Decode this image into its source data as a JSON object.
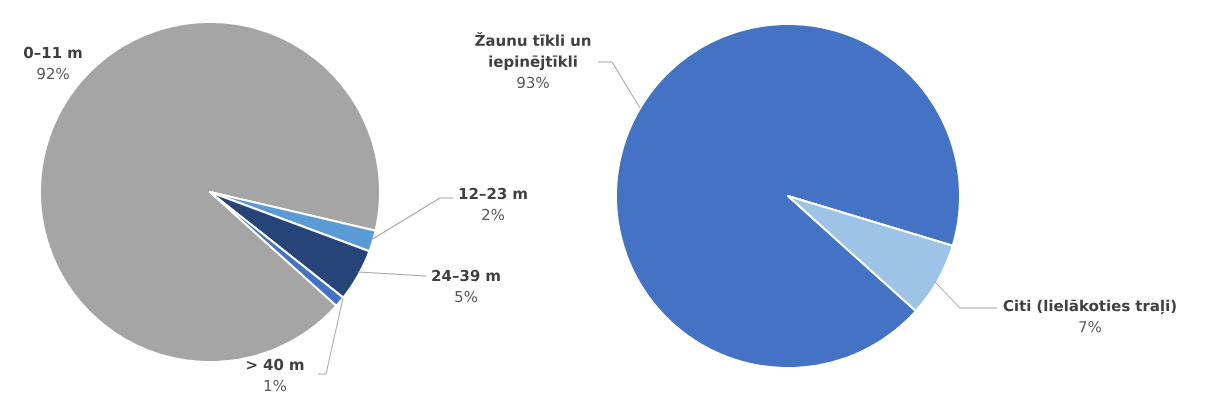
{
  "chart_data": [
    {
      "type": "pie",
      "categories": [
        "0–11 m",
        "12–23 m",
        "24–39 m",
        "> 40 m"
      ],
      "values": [
        92,
        2,
        5,
        1
      ],
      "value_labels": [
        "92%",
        "2%",
        "5%",
        "1%"
      ],
      "colors": [
        "#a5a5a5",
        "#5b9bd5",
        "#264478",
        "#4472c4"
      ]
    },
    {
      "type": "pie",
      "categories": [
        "Žaunu tīkli un iepinējtīkli",
        "Citi (lielākoties traļi)"
      ],
      "values": [
        93,
        7
      ],
      "value_labels": [
        "93%",
        "7%"
      ],
      "colors": [
        "#4472c4",
        "#9dc3e6"
      ]
    }
  ]
}
